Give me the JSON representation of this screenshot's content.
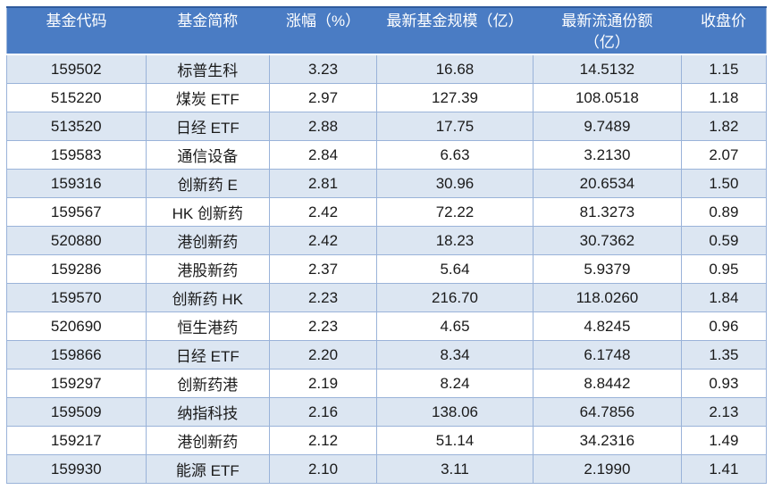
{
  "colors": {
    "header_bg": "#4a7cc4",
    "header_text": "#ffffff",
    "band_bg": "#dce6f2",
    "row_bg": "#ffffff",
    "border": "#9ab3d9",
    "outer_top_border": "#2f5b9d",
    "body_text": "#1a1a1a"
  },
  "table": {
    "column_keys": [
      "fund-code",
      "fund-name",
      "change-pct",
      "fund-scale",
      "circulating-shares",
      "closing-price"
    ]
  },
  "chart_data": {
    "type": "table",
    "title": "",
    "columns": [
      "基金代码",
      "基金简称",
      "涨幅（%）",
      "最新基金规模（亿）",
      "最新流通份额（亿）",
      "收盘价"
    ],
    "columns_display": [
      "基金代码",
      "基金简称",
      "涨幅（%）",
      "最新基金规模（亿）",
      "最新流通份额\n（亿）",
      "收盘价"
    ],
    "rows": [
      [
        "159502",
        "标普生科",
        "3.23",
        "16.68",
        "14.5132",
        "1.15"
      ],
      [
        "515220",
        "煤炭 ETF",
        "2.97",
        "127.39",
        "108.0518",
        "1.18"
      ],
      [
        "513520",
        "日经 ETF",
        "2.88",
        "17.75",
        "9.7489",
        "1.82"
      ],
      [
        "159583",
        "通信设备",
        "2.84",
        "6.63",
        "3.2130",
        "2.07"
      ],
      [
        "159316",
        "创新药 E",
        "2.81",
        "30.96",
        "20.6534",
        "1.50"
      ],
      [
        "159567",
        "HK 创新药",
        "2.42",
        "72.22",
        "81.3273",
        "0.89"
      ],
      [
        "520880",
        "港创新药",
        "2.42",
        "18.23",
        "30.7362",
        "0.59"
      ],
      [
        "159286",
        "港股新药",
        "2.37",
        "5.64",
        "5.9379",
        "0.95"
      ],
      [
        "159570",
        "创新药 HK",
        "2.23",
        "216.70",
        "118.0260",
        "1.84"
      ],
      [
        "520690",
        "恒生港药",
        "2.23",
        "4.65",
        "4.8245",
        "0.96"
      ],
      [
        "159866",
        "日经 ETF",
        "2.20",
        "8.34",
        "6.1748",
        "1.35"
      ],
      [
        "159297",
        "创新药港",
        "2.19",
        "8.24",
        "8.8442",
        "0.93"
      ],
      [
        "159509",
        "纳指科技",
        "2.16",
        "138.06",
        "64.7856",
        "2.13"
      ],
      [
        "159217",
        "港创新药",
        "2.12",
        "51.14",
        "34.2316",
        "1.49"
      ],
      [
        "159930",
        "能源 ETF",
        "2.10",
        "3.11",
        "2.1990",
        "1.41"
      ]
    ],
    "layout": {
      "header_rows": 1,
      "banding": "odd-rows-shaded",
      "grid": true
    }
  }
}
